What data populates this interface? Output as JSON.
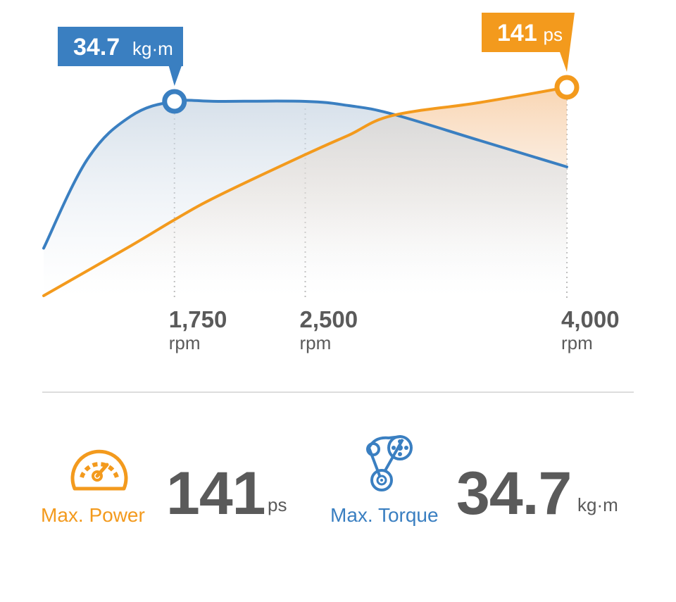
{
  "colors": {
    "power": "#f39a1d",
    "torque": "#3a7fc1",
    "text": "#5a5a5a",
    "grid": "#bbbbbb",
    "divider": "#dddddd"
  },
  "chart_data": {
    "type": "line",
    "x_unit": "rpm",
    "xlim": [
      1000,
      4000
    ],
    "series": [
      {
        "key": "torque",
        "unit": "kg·m",
        "color": "#3a7fc1",
        "x": [
          1000,
          1250,
          1500,
          1750,
          2000,
          2500,
          2750,
          3000,
          3500,
          4000
        ],
        "y": [
          20.8,
          29.2,
          33.3,
          34.7,
          34.7,
          34.7,
          34.3,
          33.5,
          31.0,
          28.5
        ]
      },
      {
        "key": "power",
        "unit": "ps",
        "color": "#f39a1d",
        "x": [
          1000,
          1500,
          1750,
          2000,
          2500,
          2750,
          3000,
          3500,
          4000
        ],
        "y": [
          45,
          68,
          80,
          91,
          110,
          119,
          128,
          134,
          141
        ]
      }
    ],
    "peaks": [
      {
        "key": "torque",
        "x": 1750,
        "value": "34.7",
        "unit": "kg·m"
      },
      {
        "key": "power",
        "x": 4000,
        "value": "141",
        "unit": "ps"
      }
    ],
    "x_ticks": [
      {
        "x": 1750,
        "label": "1,750",
        "unit": "rpm"
      },
      {
        "x": 2500,
        "label": "2,500",
        "unit": "rpm"
      },
      {
        "x": 4000,
        "label": "4,000",
        "unit": "rpm"
      }
    ]
  },
  "stats": {
    "power": {
      "icon": "speedometer-icon",
      "caption": "Max. Power",
      "value": "141",
      "unit": "ps"
    },
    "torque": {
      "icon": "belt-pulley-icon",
      "caption": "Max. Torque",
      "value": "34.7",
      "unit": "kg·m"
    }
  }
}
